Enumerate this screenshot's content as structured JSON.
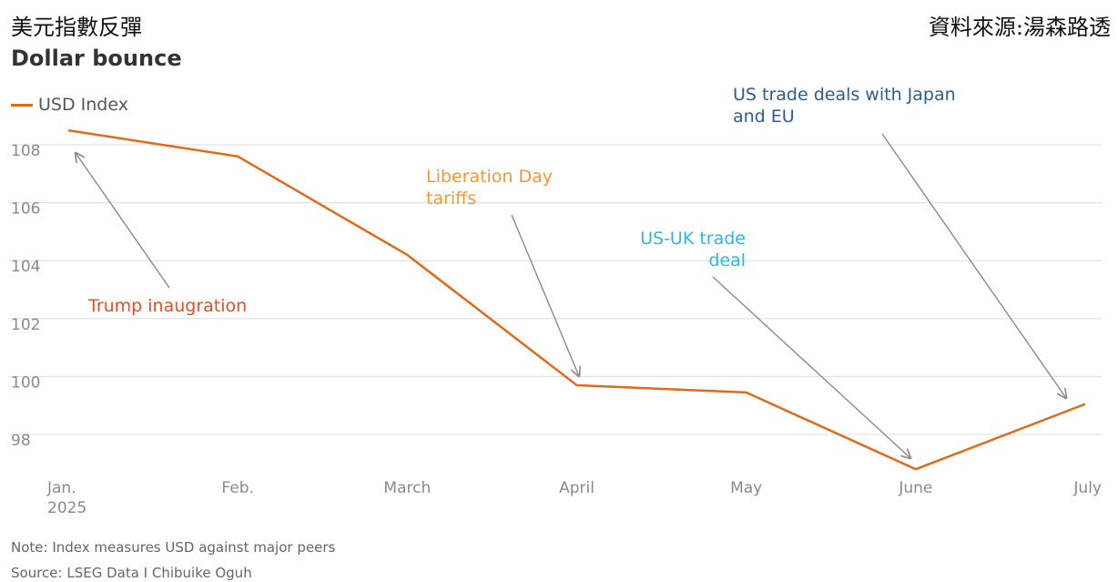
{
  "header": {
    "cn_title": "美元指數反彈",
    "cn_source": "資料來源:湯森路透",
    "title": "Dollar bounce"
  },
  "footer": {
    "note": "Note: Index measures USD against major peers",
    "source": "Source: LSEG Data I Chibuike Oguh"
  },
  "colors": {
    "series": "#e06a1b",
    "grid": "#dcdcdc",
    "arrow": "#8a8a8a"
  },
  "chart_data": {
    "type": "line",
    "categories": [
      "Jan.\n2025",
      "Feb.",
      "March",
      "April",
      "May",
      "June",
      "July"
    ],
    "series": [
      {
        "name": "USD Index",
        "values": [
          108.5,
          107.6,
          104.2,
          99.7,
          99.45,
          96.8,
          99.05
        ]
      }
    ],
    "yticks": [
      98,
      100,
      102,
      104,
      106,
      108
    ],
    "ylim": [
      97,
      109
    ],
    "grid": true,
    "legend": "top-left",
    "annotations": [
      {
        "text": "Trump inaugration",
        "color": "#e0502a",
        "index": 0
      },
      {
        "text": "Liberation Day\ntariffs",
        "color": "#f29a3a",
        "index": 3
      },
      {
        "text": "US-UK trade\ndeal",
        "color": "#34b4d8",
        "index": 5
      },
      {
        "text": "US trade deals with Japan\nand EU",
        "color": "#2f5d8a",
        "index": 6
      }
    ]
  }
}
